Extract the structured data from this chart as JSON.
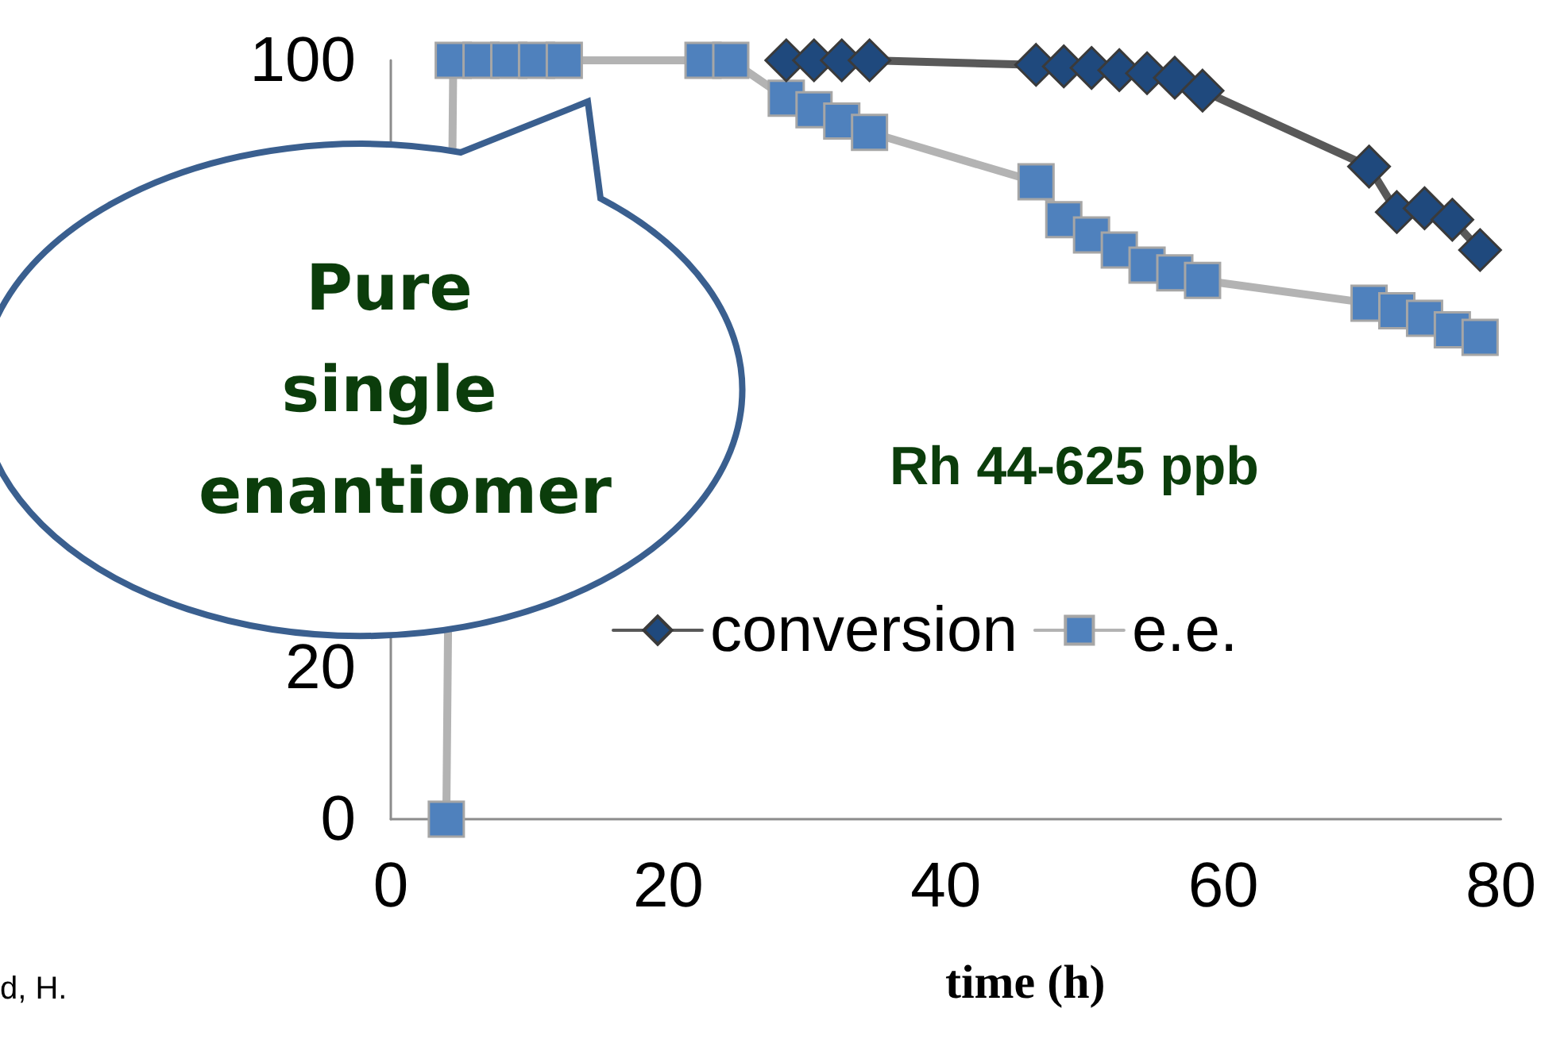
{
  "chart_data": {
    "type": "line",
    "xlabel": "time (h)",
    "xlim": [
      0,
      80
    ],
    "xticks": [
      0,
      20,
      40,
      60,
      80
    ],
    "ylim": [
      0,
      100
    ],
    "yticks": [
      0,
      20,
      100
    ],
    "grid": false,
    "legend": "bottom",
    "line_style": "solid",
    "series": [
      {
        "name": "conversion",
        "color": "#1f497d",
        "marker": "diamond",
        "x": [
          28.5,
          30.5,
          32.5,
          34.5,
          46.5,
          48.5,
          50.5,
          52.5,
          54.5,
          56.5,
          58.5,
          70.5,
          72.5,
          74.5,
          76.5,
          78.5
        ],
        "values": [
          100,
          100,
          100,
          100,
          99.4,
          99.2,
          99,
          98.7,
          98.3,
          97.7,
          96,
          86,
          80,
          80.5,
          79,
          75
        ]
      },
      {
        "name": "e.e.",
        "color": "#4f81bd",
        "marker": "square",
        "x": [
          4,
          4.5,
          6.5,
          8.5,
          10.5,
          12.5,
          22.5,
          24.5,
          28.5,
          30.5,
          32.5,
          34.5,
          46.5,
          48.5,
          50.5,
          52.5,
          54.5,
          56.5,
          58.5,
          70.5,
          72.5,
          74.5,
          76.5,
          78.5
        ],
        "values": [
          0,
          100,
          100,
          100,
          100,
          100,
          100,
          100,
          95,
          93.5,
          92,
          90.5,
          84,
          79,
          77,
          75,
          73,
          72,
          71,
          68,
          67,
          66,
          64.5,
          63.5
        ]
      }
    ],
    "annotations": [
      "Pure single enantiomer",
      "Rh 44-625 ppb",
      "d, H."
    ]
  }
}
